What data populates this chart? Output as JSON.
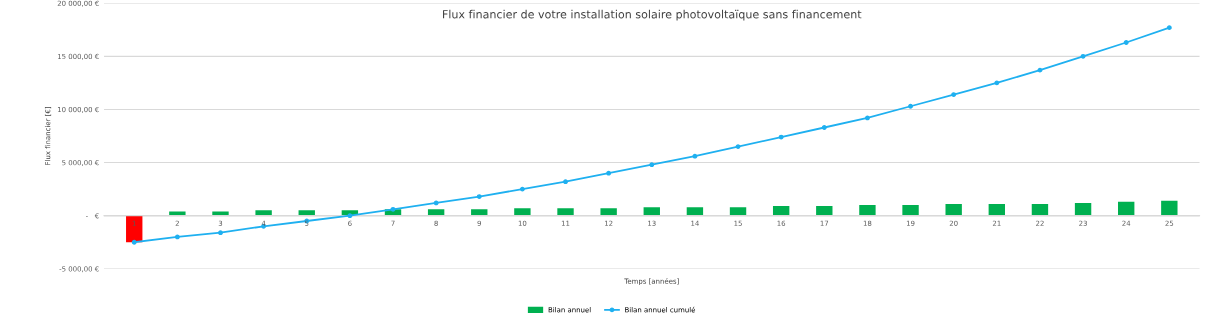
{
  "chart_data": {
    "type": "bar",
    "title": "Flux financier de votre installation solaire photovoltaïque sans financement",
    "xlabel": "Temps [années]",
    "ylabel": "Flux financier [€]",
    "categories": [
      "1",
      "2",
      "3",
      "4",
      "5",
      "6",
      "7",
      "8",
      "9",
      "10",
      "11",
      "12",
      "13",
      "14",
      "15",
      "16",
      "17",
      "18",
      "19",
      "20",
      "21",
      "22",
      "23",
      "24",
      "25"
    ],
    "series": [
      {
        "name": "Bilan annuel",
        "color": "#00b050",
        "colors": [
          "#ff0000",
          "#00b050",
          "#00b050",
          "#00b050",
          "#00b050",
          "#00b050",
          "#00b050",
          "#00b050",
          "#00b050",
          "#00b050",
          "#00b050",
          "#00b050",
          "#00b050",
          "#00b050",
          "#00b050",
          "#00b050",
          "#00b050",
          "#00b050",
          "#00b050",
          "#00b050",
          "#00b050",
          "#00b050",
          "#00b050",
          "#00b050",
          "#00b050"
        ],
        "values": [
          -2500,
          400,
          400,
          500,
          500,
          500,
          600,
          600,
          600,
          700,
          700,
          700,
          800,
          800,
          800,
          900,
          900,
          1000,
          1000,
          1100,
          1100,
          1100,
          1200,
          1300,
          1400
        ]
      },
      {
        "name": "Bilan annuel cumulé",
        "type": "line",
        "color": "#1fb0f0",
        "values": [
          -2500,
          -2000,
          -1600,
          -1000,
          -500,
          0,
          600,
          1200,
          1800,
          2500,
          3200,
          4000,
          4800,
          5600,
          6500,
          7400,
          8300,
          9200,
          10300,
          11400,
          12500,
          13700,
          15000,
          16300,
          17700
        ]
      }
    ],
    "ylim": [
      -5000,
      20000
    ],
    "yticks": [
      {
        "value": -5000,
        "label": "-5 000,00 €"
      },
      {
        "value": 0,
        "label": " -   €"
      },
      {
        "value": 5000,
        "label": "5 000,00 €"
      },
      {
        "value": 10000,
        "label": "10 000,00 €"
      },
      {
        "value": 15000,
        "label": "15 000,00 €"
      },
      {
        "value": 20000,
        "label": "20 000,00 €"
      }
    ],
    "grid": "y",
    "legend": "bottom",
    "marker": "circle"
  }
}
